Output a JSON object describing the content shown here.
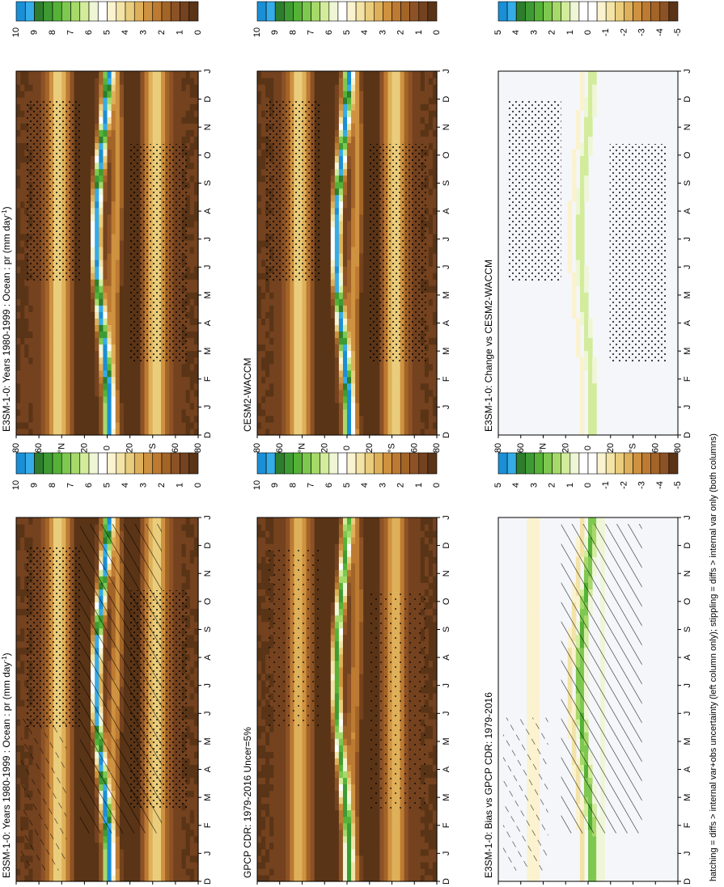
{
  "chart_data": {
    "type": "heatmap",
    "orientation": "rotated-90-clockwise",
    "caption": "hatching = diffs > internal var+obs uncertainty (left column only); stippling = diffs > internal var only (both columns)",
    "x_months": [
      "D",
      "J",
      "F",
      "M",
      "A",
      "M",
      "J",
      "J",
      "A",
      "S",
      "O",
      "N",
      "D",
      "J"
    ],
    "y_ticks": [
      "80",
      "60",
      "°N",
      "20",
      "0",
      "20",
      "°S",
      "60",
      "80"
    ],
    "latitude_range": [
      -90,
      90
    ],
    "field": "pr (mm day-1), ocean, zonal mean seasonal cycle",
    "panels": [
      {
        "id": "a",
        "row": 1,
        "column": "left",
        "title": "E3SM-1-0: Years 1980-1999 : Ocean : pr (mm day",
        "title_sup": "-1",
        "title_tail": ")",
        "scale": "abs",
        "overlay": "hatch+stipple"
      },
      {
        "id": "b",
        "row": 1,
        "column": "right",
        "title": "E3SM-1-0: Years 1980-1999 : Ocean : pr (mm day",
        "title_sup": "-1",
        "title_tail": ")",
        "scale": "abs",
        "overlay": "stipple"
      },
      {
        "id": "c",
        "row": 2,
        "column": "left",
        "title": "GPCP CDR: 1979-2016 Uncer=5%",
        "title_sup": "",
        "title_tail": "",
        "scale": "abs",
        "overlay": "stipple-light"
      },
      {
        "id": "d",
        "row": 2,
        "column": "right",
        "title": "CESM2-WACCM",
        "title_sup": "",
        "title_tail": "",
        "scale": "abs",
        "overlay": "stipple"
      },
      {
        "id": "e",
        "row": 3,
        "column": "left",
        "title": "E3SM-1-0: Bias vs GPCP CDR: 1979-2016",
        "title_sup": "",
        "title_tail": "",
        "scale": "diff",
        "overlay": "hatch"
      },
      {
        "id": "f",
        "row": 3,
        "column": "right",
        "title": "E3SM-1-0: Change vs CESM2-WACCM",
        "title_sup": "",
        "title_tail": "",
        "scale": "diff",
        "overlay": "stipple"
      }
    ],
    "colorbars": {
      "abs": {
        "labels": [
          "10",
          "9",
          "8",
          "7",
          "6",
          "5",
          "4",
          "3",
          "2",
          "1",
          "0"
        ],
        "colors": [
          "#1a8fd6",
          "#35ace8",
          "#2d7d2d",
          "#3e9b33",
          "#55b237",
          "#7ec850",
          "#a6d96a",
          "#d2ec9c",
          "#eef6d6",
          "#ffffff",
          "#fbf2cf",
          "#f3e3a6",
          "#eacd7c",
          "#deb05a",
          "#cf9240",
          "#bd7a32",
          "#a36428",
          "#8c5226",
          "#74421f",
          "#5a3416"
        ]
      },
      "diff": {
        "labels": [
          "5",
          "4",
          "3",
          "2",
          "1",
          "0",
          "-1",
          "-2",
          "-3",
          "-4",
          "-5"
        ],
        "colors": [
          "#1a8fd6",
          "#35ace8",
          "#2d7d2d",
          "#3e9b33",
          "#55b237",
          "#7ec850",
          "#a6d96a",
          "#d2ec9c",
          "#eef6d6",
          "#ffffff",
          "#ffffff",
          "#fbf2cf",
          "#f3e3a6",
          "#eacd7c",
          "#deb05a",
          "#cf9240",
          "#bd7a32",
          "#a36428",
          "#8c5226",
          "#5a3416"
        ]
      }
    },
    "colors": {
      "frame": "#000000",
      "bias_background": "#f4f6fa"
    }
  }
}
